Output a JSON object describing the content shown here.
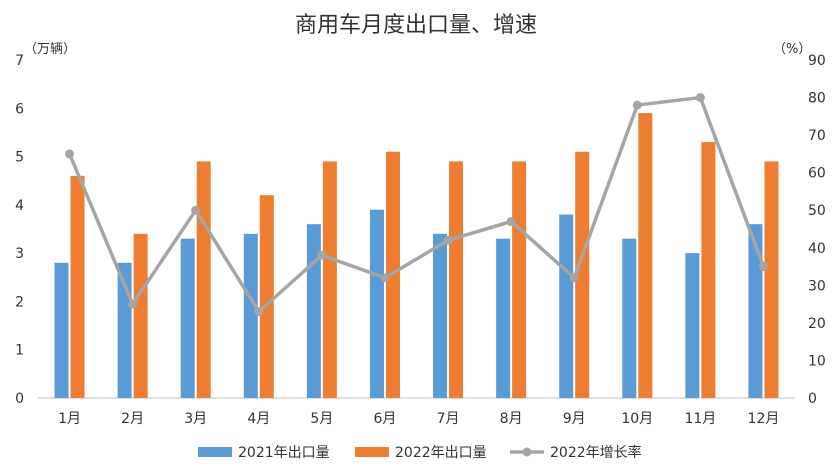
{
  "chart_data": {
    "type": "bar+line",
    "title": "商用车月度出口量、增速",
    "categories": [
      "1月",
      "2月",
      "3月",
      "4月",
      "5月",
      "6月",
      "7月",
      "8月",
      "9月",
      "10月",
      "11月",
      "12月"
    ],
    "series": [
      {
        "name": "2021年出口量",
        "type": "bar",
        "axis": "left",
        "color": "#5b9bd5",
        "values": [
          2.8,
          2.8,
          3.3,
          3.4,
          3.6,
          3.9,
          3.4,
          3.3,
          3.8,
          3.3,
          3.0,
          3.6
        ]
      },
      {
        "name": "2022年出口量",
        "type": "bar",
        "axis": "left",
        "color": "#ed7d31",
        "values": [
          4.6,
          3.4,
          4.9,
          4.2,
          4.9,
          5.1,
          4.9,
          4.9,
          5.1,
          5.9,
          5.3,
          4.9
        ]
      },
      {
        "name": "2022年增长率",
        "type": "line",
        "axis": "right",
        "color": "#a5a5a5",
        "values": [
          65,
          25,
          50,
          23,
          38,
          32,
          42,
          47,
          32,
          78,
          80,
          35
        ]
      }
    ],
    "y_left": {
      "label": "（万辆）",
      "ylim": [
        0,
        7
      ],
      "ticks": [
        "0",
        "1",
        "2",
        "3",
        "4",
        "5",
        "6",
        "7"
      ]
    },
    "y_right": {
      "label": "（%）",
      "ylim": [
        0,
        90
      ],
      "ticks": [
        "0",
        "10",
        "20",
        "30",
        "40",
        "50",
        "60",
        "70",
        "80",
        "90"
      ]
    },
    "legend_position": "bottom"
  }
}
